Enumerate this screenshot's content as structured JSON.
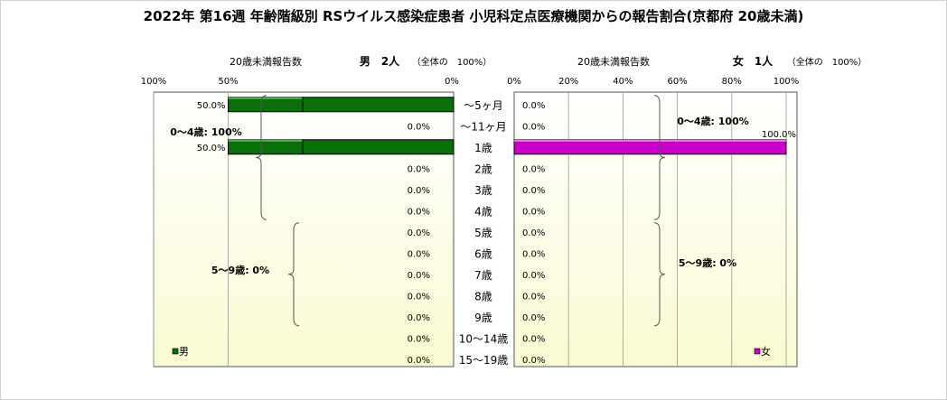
{
  "chart_data": {
    "type": "bar",
    "title": "2022年 第16週 年齢階級別 RSウイルス感染症患者 小児科定点医療機関からの報告割合(京都府 20歳未満)",
    "categories": [
      "～5ヶ月",
      "～11ヶ月",
      "1歳",
      "2歳",
      "3歳",
      "4歳",
      "5歳",
      "6歳",
      "7歳",
      "8歳",
      "9歳",
      "10～14歳",
      "15～19歳"
    ],
    "male": {
      "caption": "20歳未満報告数",
      "heading": "男　2人",
      "total_note": "（全体の　100%）",
      "legend": "男",
      "color": "#0a6e0a",
      "axis_ticks": [
        "100%",
        "50%",
        "0%"
      ],
      "values": [
        50.0,
        0.0,
        50.0,
        0.0,
        0.0,
        0.0,
        0.0,
        0.0,
        0.0,
        0.0,
        0.0,
        0.0,
        0.0
      ],
      "value_labels": [
        "50.0%",
        "0.0%",
        "50.0%",
        "0.0%",
        "0.0%",
        "0.0%",
        "0.0%",
        "0.0%",
        "0.0%",
        "0.0%",
        "0.0%",
        "0.0%",
        "0.0%"
      ],
      "group_labels": [
        "0～4歳: 100%",
        "5～9歳: 0%"
      ]
    },
    "female": {
      "caption": "20歳未満報告数",
      "heading": "女　1人",
      "total_note": "（全体の　100%）",
      "legend": "女",
      "color": "#cc00cc",
      "axis_ticks": [
        "0%",
        "20%",
        "40%",
        "60%",
        "80%",
        "100%"
      ],
      "values": [
        0.0,
        0.0,
        100.0,
        0.0,
        0.0,
        0.0,
        0.0,
        0.0,
        0.0,
        0.0,
        0.0,
        0.0,
        0.0
      ],
      "value_labels": [
        "0.0%",
        "0.0%",
        "100.0%",
        "0.0%",
        "0.0%",
        "0.0%",
        "0.0%",
        "0.0%",
        "0.0%",
        "0.0%",
        "0.0%",
        "0.0%",
        "0.0%"
      ],
      "group_labels": [
        "0～4歳: 100%",
        "5～9歳: 0%"
      ]
    },
    "xlim": [
      0,
      100
    ]
  }
}
